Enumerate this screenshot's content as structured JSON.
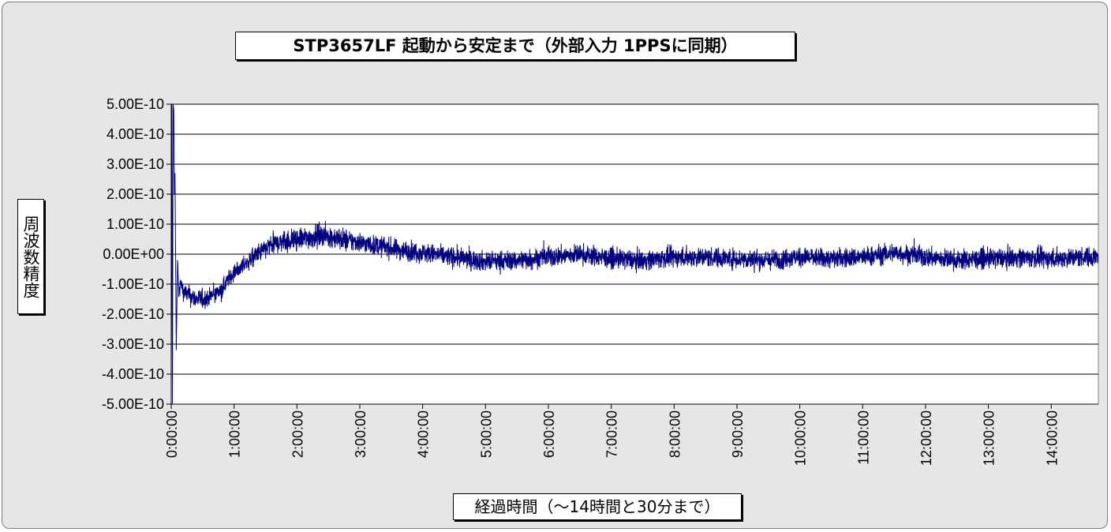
{
  "chart_data": {
    "type": "line",
    "title": "STP3657LF 起動から安定まで（外部入力 1PPSに同期）",
    "xlabel": "経過時間（～14時間と30分まで）",
    "ylabel": "周波数精度",
    "x_unit": "hours",
    "xlim": [
      0,
      14.75
    ],
    "ylim": [
      -5e-10,
      5e-10
    ],
    "x_tick_values": [
      0,
      1,
      2,
      3,
      4,
      5,
      6,
      7,
      8,
      9,
      10,
      11,
      12,
      13,
      14
    ],
    "x_tick_labels": [
      "0:00:00",
      "1:00:00",
      "2:00:00",
      "3:00:00",
      "4:00:00",
      "5:00:00",
      "6:00:00",
      "7:00:00",
      "8:00:00",
      "9:00:00",
      "10:00:00",
      "11:00:00",
      "12:00:00",
      "13:00:00",
      "14:00:00"
    ],
    "y_tick_values": [
      5e-10,
      4e-10,
      3e-10,
      2e-10,
      1e-10,
      0,
      -1e-10,
      -2e-10,
      -3e-10,
      -4e-10,
      -5e-10
    ],
    "y_tick_labels": [
      "5.00E-10",
      "4.00E-10",
      "3.00E-10",
      "2.00E-10",
      "1.00E-10",
      "0.00E+00",
      "-1.00E-10",
      "-2.00E-10",
      "-3.00E-10",
      "-4.00E-10",
      "-5.00E-10"
    ],
    "grid": {
      "horizontal": true,
      "vertical": false
    },
    "legend": "none",
    "series": [
      {
        "color": "#000080",
        "x": [
          0.0,
          0.01,
          0.02,
          0.03,
          0.04,
          0.05,
          0.06,
          0.08,
          0.1,
          0.12,
          0.15,
          0.2,
          0.3,
          0.4,
          0.5,
          0.6,
          0.7,
          0.8,
          0.9,
          1.0,
          1.2,
          1.4,
          1.6,
          1.8,
          2.0,
          2.2,
          2.4,
          2.6,
          2.8,
          3.0,
          3.2,
          3.4,
          3.6,
          3.8,
          4.0,
          4.5,
          5.0,
          5.5,
          6.0,
          6.5,
          7.0,
          7.5,
          8.0,
          8.5,
          9.0,
          9.5,
          10.0,
          10.5,
          11.0,
          11.5,
          12.0,
          12.5,
          13.0,
          13.5,
          14.0,
          14.5,
          14.75
        ],
        "y": [
          -5e-10,
          5e-10,
          -5e-10,
          5e-10,
          4.8e-10,
          2e-10,
          2.7e-10,
          -3.2e-10,
          -2e-11,
          -1.3e-10,
          -1e-10,
          -1.25e-10,
          -1.4e-10,
          -1.5e-10,
          -1.5e-10,
          -1.45e-10,
          -1.3e-10,
          -1.2e-10,
          -8.5e-11,
          -6e-11,
          -3e-11,
          5e-12,
          3e-11,
          4.5e-11,
          5e-11,
          5.5e-11,
          6.5e-11,
          5.5e-11,
          4.5e-11,
          4e-11,
          3e-11,
          2.5e-11,
          1.5e-11,
          1e-11,
          5e-12,
          -1e-11,
          -2.5e-11,
          -2e-11,
          -1e-11,
          0.0,
          -1.5e-11,
          -2e-11,
          -1e-11,
          -1e-11,
          -1.5e-11,
          -2e-11,
          -1e-11,
          -1.5e-11,
          -1e-11,
          5e-12,
          -1e-11,
          -2e-11,
          -1.5e-11,
          -1e-11,
          -1.5e-11,
          -1e-11,
          -1e-11
        ],
        "noise_amplitude": [
          0,
          0,
          0,
          0,
          0,
          0,
          0,
          0,
          2e-11,
          3.5e-11,
          3.5e-11,
          3e-11,
          3.5e-11,
          3.5e-11,
          3.5e-11,
          3e-11,
          3e-11,
          3e-11,
          3e-11,
          3e-11,
          3e-11,
          3.5e-11,
          3.5e-11,
          4e-11,
          4e-11,
          4e-11,
          4e-11,
          4e-11,
          4e-11,
          3.5e-11,
          3.5e-11,
          3.5e-11,
          3.5e-11,
          3.5e-11,
          3.5e-11,
          3.5e-11,
          3.5e-11,
          3.5e-11,
          3.5e-11,
          3.5e-11,
          3.5e-11,
          3.5e-11,
          3.5e-11,
          3.5e-11,
          3.5e-11,
          3.5e-11,
          3.5e-11,
          3.5e-11,
          3.5e-11,
          3.5e-11,
          3.5e-11,
          3.5e-11,
          3.5e-11,
          3.5e-11,
          3.5e-11,
          3.5e-11,
          3.5e-11
        ]
      }
    ]
  }
}
